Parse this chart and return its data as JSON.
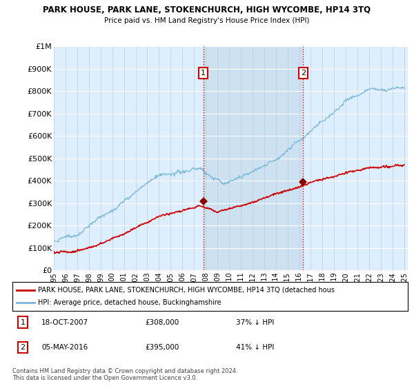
{
  "title": "PARK HOUSE, PARK LANE, STOKENCHURCH, HIGH WYCOMBE, HP14 3TQ",
  "subtitle": "Price paid vs. HM Land Registry's House Price Index (HPI)",
  "hpi_color": "#7ab6d9",
  "price_color": "#cc0000",
  "vline_color": "#cc0000",
  "background_color": "#ddeeff",
  "shade_color": "#c8dff0",
  "ylim": [
    0,
    1000000
  ],
  "yticks": [
    0,
    100000,
    200000,
    300000,
    400000,
    500000,
    600000,
    700000,
    800000,
    900000,
    1000000
  ],
  "ytick_labels": [
    "£0",
    "£100K",
    "£200K",
    "£300K",
    "£400K",
    "£500K",
    "£600K",
    "£700K",
    "£800K",
    "£900K",
    "£1M"
  ],
  "x_start_year": 1995,
  "x_end_year": 2025,
  "point1": {
    "year": 2007.8,
    "value": 308000,
    "label": "1"
  },
  "point2": {
    "year": 2016.35,
    "value": 395000,
    "label": "2"
  },
  "legend_house": "PARK HOUSE, PARK LANE, STOKENCHURCH, HIGH WYCOMBE, HP14 3TQ (detached hous",
  "legend_hpi": "HPI: Average price, detached house, Buckinghamshire",
  "table_rows": [
    {
      "num": "1",
      "date": "18-OCT-2007",
      "price": "£308,000",
      "pct": "37% ↓ HPI"
    },
    {
      "num": "2",
      "date": "05-MAY-2016",
      "price": "£395,000",
      "pct": "41% ↓ HPI"
    }
  ],
  "footer": "Contains HM Land Registry data © Crown copyright and database right 2024.\nThis data is licensed under the Open Government Licence v3.0."
}
